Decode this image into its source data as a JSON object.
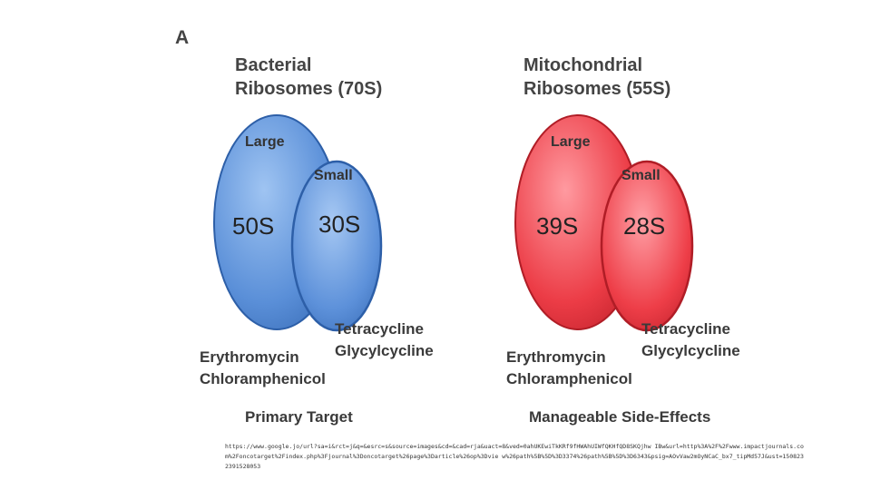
{
  "panel_letter": "A",
  "left": {
    "title_line1": "Bacterial",
    "title_line2": "Ribosomes (70S)",
    "large_label": "Large",
    "small_label": "Small",
    "large_value": "50S",
    "small_value": "30S",
    "small_drugs": [
      "Tetracycline",
      "Glycylcycline"
    ],
    "large_drugs": [
      "Erythromycin",
      "Chloramphenicol"
    ],
    "caption": "Primary Target",
    "color": "#5a8fd8"
  },
  "right": {
    "title_line1": "Mitochondrial",
    "title_line2": "Ribosomes (55S)",
    "large_label": "Large",
    "small_label": "Small",
    "large_value": "39S",
    "small_value": "28S",
    "small_drugs": [
      "Tetracycline",
      "Glycylcycline"
    ],
    "large_drugs": [
      "Erythromycin",
      "Chloramphenicol"
    ],
    "caption": "Manageable Side-Effects",
    "color": "#e8404a"
  },
  "source_url": "https://www.google.jo/url?sa=i&rct=j&q=&esrc=s&source=images&cd=&cad=rja&uact=8&ved=0ahUKEwiTkKRf9fHWAhUIWfQKHfQD8SKQjhw IBw&url=http%3A%2F%2Fwww.impactjournals.com%2Foncotarget%2Findex.php%3Fjournal%3Doncotarget%26page%3Darticle%26op%3Dvie w%26path%5B%5D%3D3374%26path%5B%5D%3D6343&psig=AOvVaw2mOyNCaC_bx7_tipMd57J&ust=1508232391528053"
}
